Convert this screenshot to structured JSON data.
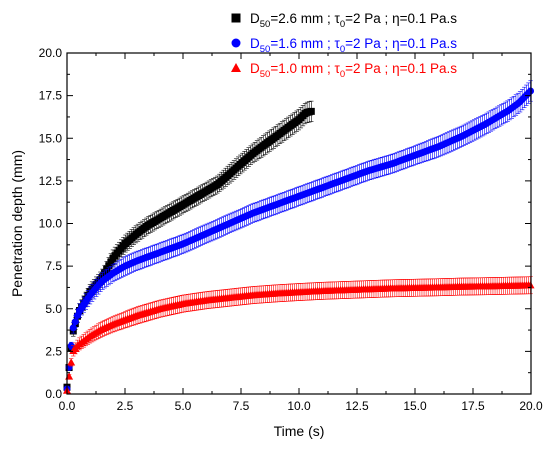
{
  "chart_data": {
    "type": "scatter",
    "title": "",
    "xlabel": "Time (s)",
    "ylabel": "Penetration depth (mm)",
    "xlim": [
      0,
      20
    ],
    "ylim": [
      0,
      20
    ],
    "xticks": [
      "0.0",
      "2.5",
      "5.0",
      "7.5",
      "10.0",
      "12.5",
      "15.0",
      "17.5",
      "20.0"
    ],
    "yticks": [
      "0.0",
      "2.5",
      "5.0",
      "7.5",
      "10.0",
      "12.5",
      "15.0",
      "17.5",
      "20.0"
    ],
    "grid": false,
    "legend_position": "top-right",
    "series": [
      {
        "d50_value": "2.6",
        "marker": "square",
        "color": "#000000",
        "x": [
          0,
          0.25,
          0.5,
          1,
          1.5,
          2,
          2.5,
          3,
          3.5,
          4,
          4.5,
          5,
          5.5,
          6,
          6.5,
          7,
          7.5,
          8,
          8.5,
          9,
          9.5,
          10,
          10.3,
          10.6
        ],
        "y": [
          0.4,
          3.6,
          4.8,
          6,
          6.8,
          8,
          8.8,
          9.4,
          9.9,
          10.3,
          10.7,
          11.1,
          11.5,
          11.9,
          12.3,
          12.9,
          13.5,
          14.1,
          14.6,
          15.1,
          15.6,
          16.1,
          16.5,
          16.6
        ],
        "err": [
          0,
          0.3,
          0.4,
          0.45,
          0.45,
          0.5,
          0.5,
          0.5,
          0.5,
          0.5,
          0.5,
          0.5,
          0.5,
          0.5,
          0.5,
          0.55,
          0.55,
          0.55,
          0.6,
          0.6,
          0.6,
          0.6,
          0.6,
          0.6
        ]
      },
      {
        "d50_value": "1.6",
        "marker": "circle",
        "color": "#0000ff",
        "x": [
          0,
          0.25,
          0.5,
          1,
          1.5,
          2,
          2.5,
          3,
          4,
          5,
          6,
          7,
          8,
          9,
          10,
          11,
          12,
          13,
          14,
          15,
          16,
          17,
          18,
          19,
          19.5,
          20
        ],
        "y": [
          0.3,
          3.8,
          4.8,
          5.8,
          6.6,
          7.1,
          7.5,
          7.8,
          8.3,
          8.8,
          9.4,
          10,
          10.6,
          11.1,
          11.6,
          12.1,
          12.6,
          13.1,
          13.5,
          14,
          14.5,
          15.1,
          15.8,
          16.6,
          17.1,
          17.8
        ],
        "err": [
          0,
          0.3,
          0.4,
          0.5,
          0.5,
          0.5,
          0.55,
          0.55,
          0.55,
          0.55,
          0.55,
          0.55,
          0.55,
          0.55,
          0.55,
          0.55,
          0.55,
          0.55,
          0.55,
          0.55,
          0.6,
          0.6,
          0.6,
          0.6,
          0.6,
          0.6
        ]
      },
      {
        "d50_value": "1.0",
        "marker": "triangle",
        "color": "#ff0000",
        "x": [
          0,
          0.25,
          0.5,
          1,
          1.5,
          2,
          3,
          4,
          5,
          6,
          7,
          8,
          9,
          10,
          11,
          12,
          13,
          14,
          15,
          16,
          17,
          18,
          19,
          20
        ],
        "y": [
          0.2,
          2.5,
          2.9,
          3.4,
          3.8,
          4.1,
          4.6,
          5,
          5.3,
          5.5,
          5.65,
          5.8,
          5.9,
          5.98,
          6.05,
          6.1,
          6.15,
          6.2,
          6.23,
          6.26,
          6.3,
          6.32,
          6.35,
          6.38
        ],
        "err": [
          0,
          0.3,
          0.35,
          0.4,
          0.45,
          0.45,
          0.5,
          0.5,
          0.5,
          0.5,
          0.5,
          0.5,
          0.5,
          0.5,
          0.5,
          0.5,
          0.5,
          0.5,
          0.5,
          0.5,
          0.5,
          0.5,
          0.5,
          0.5
        ]
      }
    ]
  }
}
